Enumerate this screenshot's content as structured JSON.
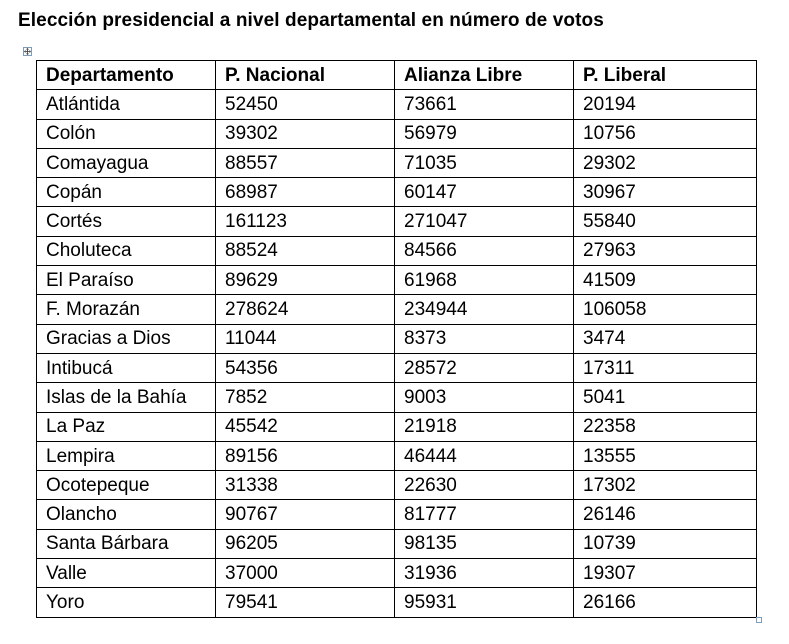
{
  "document": {
    "title": "Elección presidencial a nivel departamental  en número de votos"
  },
  "table": {
    "headers": [
      "Departamento",
      "P. Nacional",
      "Alianza Libre",
      "P. Liberal"
    ],
    "rows": [
      [
        "Atlántida",
        "52450",
        "73661",
        "20194"
      ],
      [
        "Colón",
        "39302",
        "56979",
        "10756"
      ],
      [
        "Comayagua",
        "88557",
        "71035",
        "29302"
      ],
      [
        "Copán",
        "68987",
        "60147",
        "30967"
      ],
      [
        "Cortés",
        "161123",
        "271047",
        "55840"
      ],
      [
        "Choluteca",
        "88524",
        "84566",
        "27963"
      ],
      [
        "El Paraíso",
        "89629",
        "61968",
        "41509"
      ],
      [
        "F. Morazán",
        "278624",
        "234944",
        "106058"
      ],
      [
        "Gracias a Dios",
        "11044",
        "8373",
        "3474"
      ],
      [
        "Intibucá",
        "54356",
        "28572",
        "17311"
      ],
      [
        "Islas de la Bahía",
        "7852",
        "9003",
        "5041"
      ],
      [
        "La Paz",
        "45542",
        "21918",
        "22358"
      ],
      [
        "Lempira",
        "89156",
        "46444",
        "13555"
      ],
      [
        "Ocotepeque",
        "31338",
        "22630",
        "17302"
      ],
      [
        "Olancho",
        "90767",
        "81777",
        "26146"
      ],
      [
        "Santa Bárbara",
        "96205",
        "98135",
        "10739"
      ],
      [
        "Valle",
        "37000",
        "31936",
        "19307"
      ],
      [
        "Yoro",
        "79541",
        "95931",
        "26166"
      ]
    ]
  },
  "icons": {
    "table_move_handle": "four-way-arrow-icon",
    "table_resize_handle": "resize-square-icon",
    "handle_color": "#7f9db9"
  }
}
